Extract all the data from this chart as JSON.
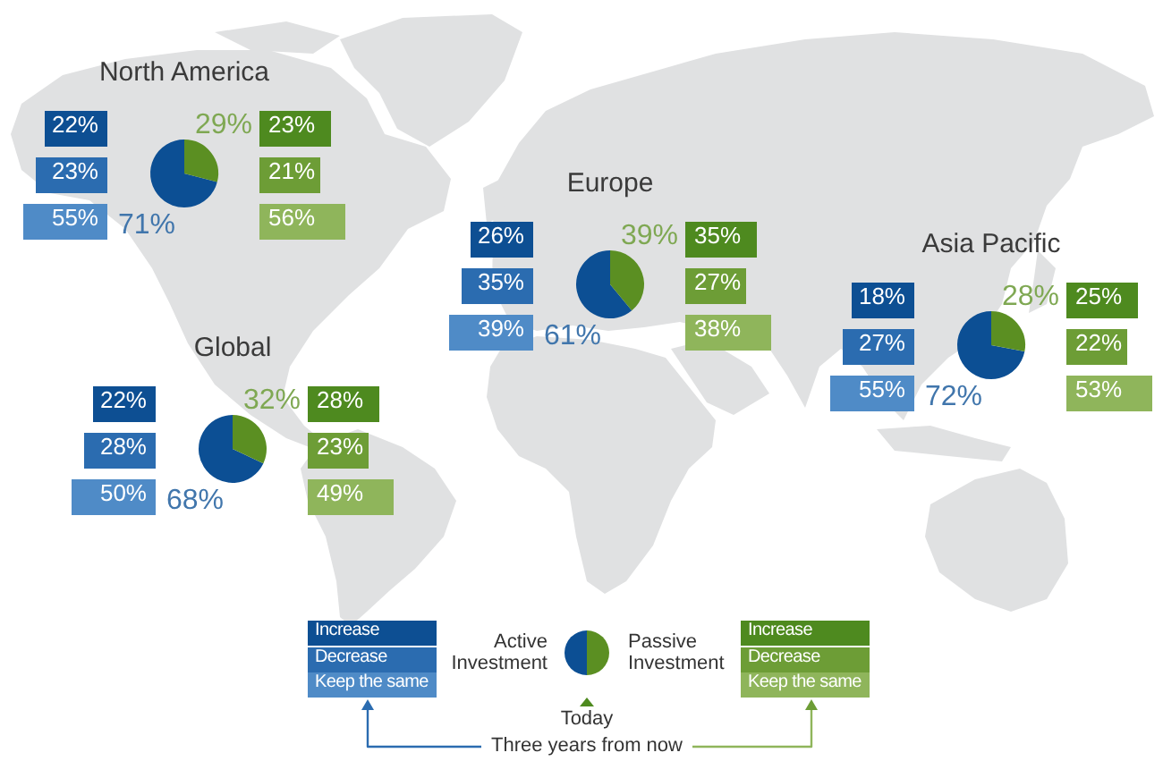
{
  "chart_data": [
    {
      "type": "pie",
      "title": "North America",
      "categories": [
        null,
        null
      ],
      "values": [
        71,
        29
      ],
      "colors": [
        "#0c4f94",
        "#5b8f22"
      ],
      "value_labels": [
        "71%",
        "29%"
      ]
    },
    {
      "type": "other",
      "values": [
        22,
        23,
        55
      ],
      "value_labels": [
        "22%",
        "23%",
        "55%"
      ],
      "colors": [
        "#0d4f93",
        "#2b6cb0",
        "#4f8bc7"
      ]
    },
    {
      "type": "other",
      "values": [
        23,
        21,
        56
      ],
      "value_labels": [
        "23%",
        "21%",
        "56%"
      ],
      "colors": [
        "#4e8a1f",
        "#6d9d36",
        "#8fb55b"
      ]
    },
    {
      "type": "pie",
      "title": "Europe",
      "categories": [
        null,
        null
      ],
      "values": [
        61,
        39
      ],
      "colors": [
        "#0c4f94",
        "#5b8f22"
      ],
      "value_labels": [
        "61%",
        "39%"
      ]
    },
    {
      "type": "other",
      "values": [
        26,
        35,
        39
      ],
      "value_labels": [
        "26%",
        "35%",
        "39%"
      ],
      "colors": [
        "#0d4f93",
        "#2b6cb0",
        "#4f8bc7"
      ]
    },
    {
      "type": "other",
      "values": [
        35,
        27,
        38
      ],
      "value_labels": [
        "35%",
        "27%",
        "38%"
      ],
      "colors": [
        "#4e8a1f",
        "#6d9d36",
        "#8fb55b"
      ]
    },
    {
      "type": "pie",
      "title": "Asia Pacific",
      "categories": [
        null,
        null
      ],
      "values": [
        72,
        28
      ],
      "colors": [
        "#0c4f94",
        "#5b8f22"
      ],
      "value_labels": [
        "72%",
        "28%"
      ]
    },
    {
      "type": "other",
      "values": [
        18,
        27,
        55
      ],
      "value_labels": [
        "18%",
        "27%",
        "55%"
      ],
      "colors": [
        "#0d4f93",
        "#2b6cb0",
        "#4f8bc7"
      ]
    },
    {
      "type": "other",
      "values": [
        25,
        22,
        53
      ],
      "value_labels": [
        "25%",
        "22%",
        "53%"
      ],
      "colors": [
        "#4e8a1f",
        "#6d9d36",
        "#8fb55b"
      ]
    },
    {
      "type": "pie",
      "title": "Global",
      "categories": [
        null,
        null
      ],
      "values": [
        68,
        32
      ],
      "colors": [
        "#0c4f94",
        "#5b8f22"
      ],
      "value_labels": [
        "68%",
        "32%"
      ]
    },
    {
      "type": "other",
      "values": [
        22,
        28,
        50
      ],
      "value_labels": [
        "22%",
        "28%",
        "50%"
      ],
      "colors": [
        "#0d4f93",
        "#2b6cb0",
        "#4f8bc7"
      ]
    },
    {
      "type": "other",
      "values": [
        28,
        23,
        49
      ],
      "value_labels": [
        "28%",
        "23%",
        "49%"
      ],
      "colors": [
        "#4e8a1f",
        "#6d9d36",
        "#8fb55b"
      ]
    },
    {
      "type": "other",
      "annotations": [
        "Increase",
        "Decrease",
        "Keep the same",
        "Active Investment",
        "Passive Investment",
        "Increase",
        "Decrease",
        "Keep the same",
        "Today",
        "Three years from now"
      ]
    }
  ]
}
